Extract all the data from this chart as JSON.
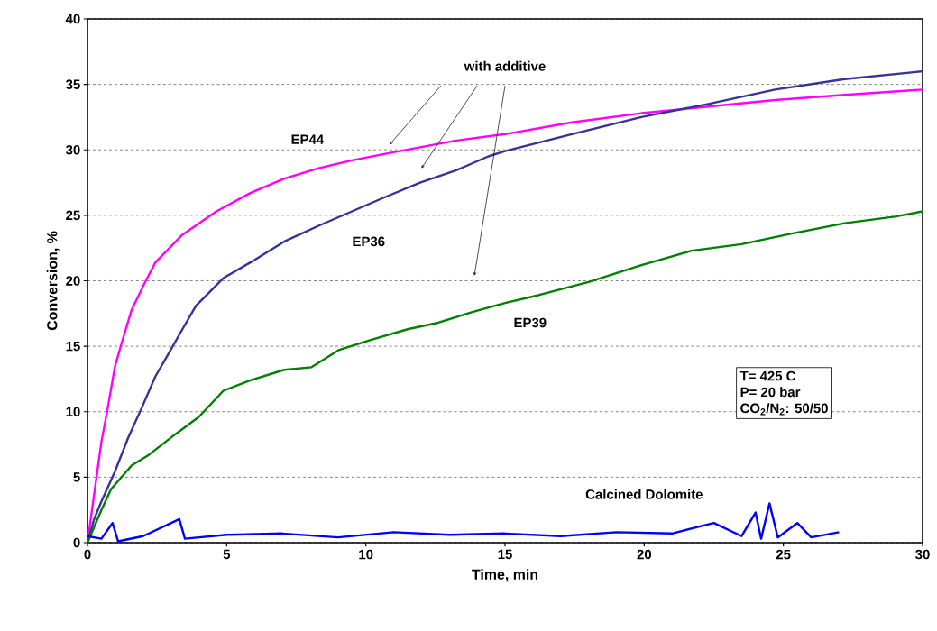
{
  "chart_data": {
    "type": "line",
    "xlabel": "Time, min",
    "ylabel": "Conversion, %",
    "xlim": [
      0,
      30
    ],
    "ylim": [
      0,
      40
    ],
    "xticks": [
      0,
      5,
      10,
      15,
      20,
      25,
      30
    ],
    "yticks": [
      0,
      5,
      10,
      15,
      20,
      25,
      30,
      35,
      40
    ],
    "grid": "y",
    "line_style": "solid",
    "annotations": [
      "with additive",
      "T= 425 C",
      "P= 20 bar",
      "CO$_{2}$/N$_{2}$: 50/50"
    ],
    "series": [
      {
        "name": "EP44",
        "color": "#ff00ff",
        "x": [
          0,
          0.5,
          0.73,
          0.98,
          1.22,
          1.59,
          2.07,
          2.44,
          3.4,
          4.63,
          5.85,
          7.07,
          8.3,
          9.5,
          10.7,
          11.95,
          13.2,
          15,
          17.4,
          19.9,
          22.3,
          24.7,
          27.2,
          30
        ],
        "values": [
          0,
          7.7,
          10.3,
          13.4,
          15.2,
          17.8,
          19.9,
          21.4,
          23.5,
          25.3,
          26.7,
          27.8,
          28.6,
          29.2,
          29.7,
          30.2,
          30.7,
          31.2,
          32.1,
          32.8,
          33.3,
          33.8,
          34.2,
          34.6
        ]
      },
      {
        "name": "EP36",
        "color": "#333399",
        "x": [
          0,
          0.24,
          0.49,
          0.98,
          1.46,
          1.95,
          2.44,
          2.93,
          3.41,
          3.9,
          4.88,
          5.85,
          7.07,
          8.3,
          9.5,
          10.7,
          11.95,
          13.2,
          14.4,
          15,
          17.4,
          19.9,
          22.3,
          24.7,
          27.2,
          30
        ],
        "values": [
          0,
          1.8,
          3.1,
          5.4,
          8.0,
          10.3,
          12.7,
          14.5,
          16.3,
          18.1,
          20.2,
          21.4,
          23.0,
          24.2,
          25.3,
          26.4,
          27.5,
          28.4,
          29.5,
          29.9,
          31.2,
          32.5,
          33.5,
          34.6,
          35.4,
          36.0
        ]
      },
      {
        "name": "EP39",
        "color": "#008000",
        "x": [
          0,
          0.5,
          0.85,
          1.59,
          2.2,
          3.17,
          4.0,
          4.88,
          5.85,
          7.07,
          8.05,
          9.02,
          10.2,
          11.5,
          12.6,
          13.8,
          15,
          16.2,
          18.0,
          19.9,
          21.7,
          23.5,
          25.3,
          27.2,
          29,
          30
        ],
        "values": [
          0,
          2.5,
          4.1,
          5.9,
          6.7,
          8.3,
          9.6,
          11.6,
          12.4,
          13.2,
          13.4,
          14.7,
          15.5,
          16.3,
          16.8,
          17.6,
          18.3,
          18.9,
          19.9,
          21.2,
          22.3,
          22.8,
          23.6,
          24.4,
          24.9,
          25.3
        ]
      },
      {
        "name": "Calcined Dolomite",
        "color": "#0000ff",
        "x": [
          0,
          0.5,
          0.9,
          1.1,
          2,
          3.3,
          3.5,
          5,
          7,
          9,
          11,
          13,
          15,
          17,
          19,
          21,
          22.5,
          23.5,
          24.0,
          24.2,
          24.5,
          24.8,
          25.5,
          26,
          27
        ],
        "values": [
          0.5,
          0.3,
          1.5,
          0.1,
          0.5,
          1.8,
          0.3,
          0.6,
          0.7,
          0.4,
          0.8,
          0.6,
          0.7,
          0.5,
          0.8,
          0.7,
          1.5,
          0.5,
          2.3,
          0.3,
          3.0,
          0.4,
          1.5,
          0.4,
          0.8
        ]
      }
    ]
  }
}
